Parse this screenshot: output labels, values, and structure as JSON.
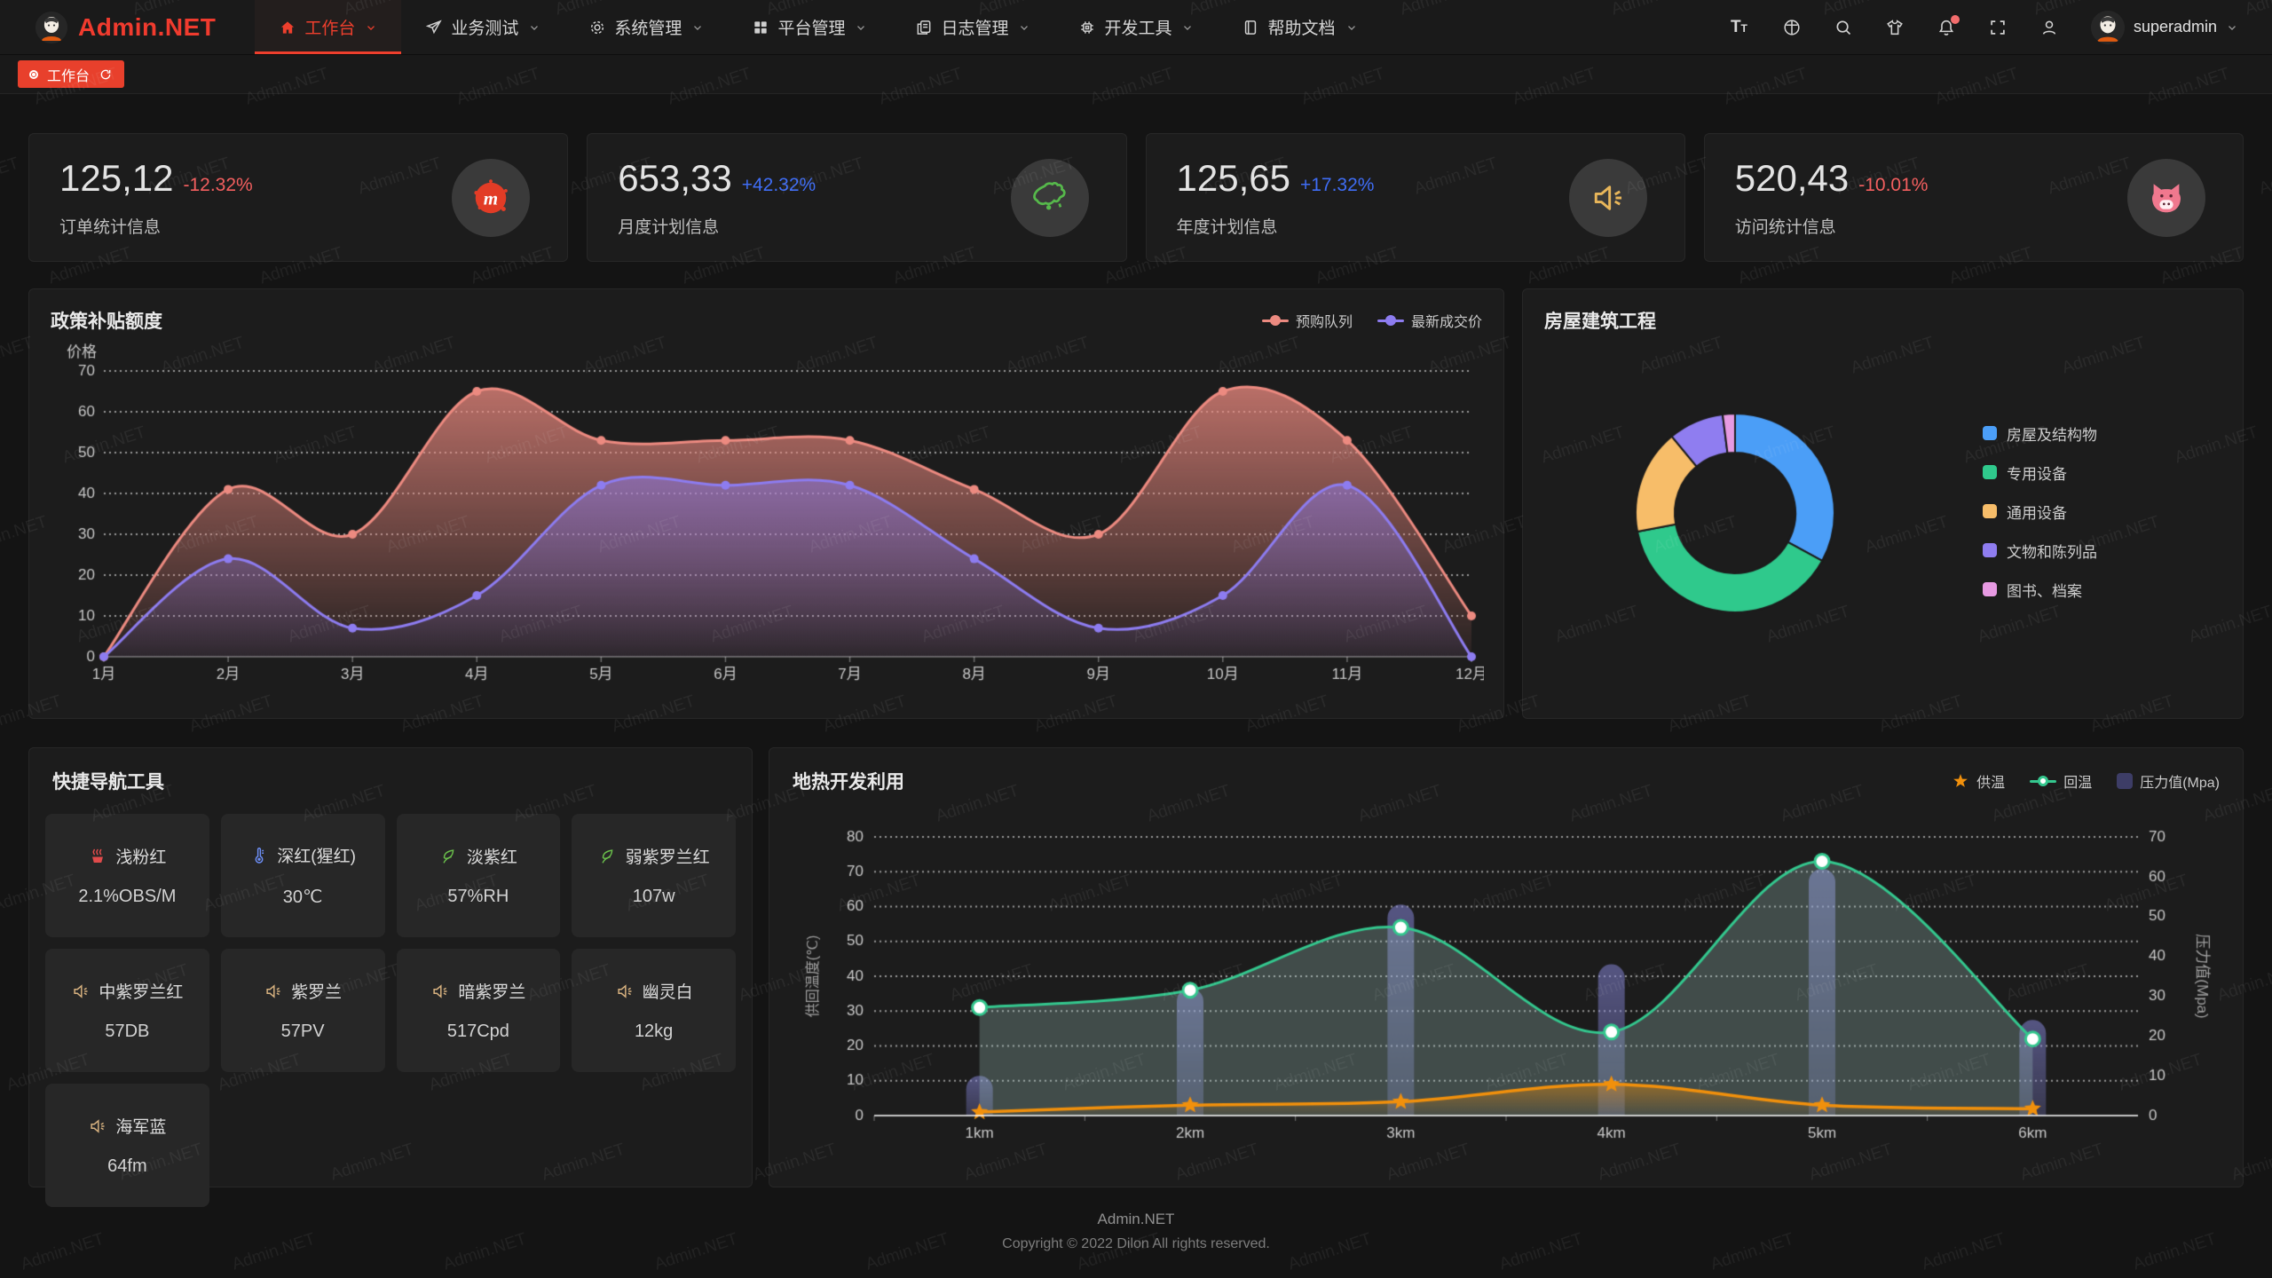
{
  "navbar": {
    "logo_text": "Admin.NET",
    "menu": [
      {
        "label": "工作台",
        "icon": "home-icon",
        "active": true
      },
      {
        "label": "业务测试",
        "icon": "send-icon",
        "active": false
      },
      {
        "label": "系统管理",
        "icon": "gear-icon",
        "active": false
      },
      {
        "label": "平台管理",
        "icon": "grid-icon",
        "active": false
      },
      {
        "label": "日志管理",
        "icon": "log-icon",
        "active": false
      },
      {
        "label": "开发工具",
        "icon": "cpu-icon",
        "active": false
      },
      {
        "label": "帮助文档",
        "icon": "book-icon",
        "active": false
      }
    ],
    "right_icons": [
      "font-size-icon",
      "language-icon",
      "search-icon",
      "theme-shirt-icon",
      "bell-icon",
      "fullscreen-icon",
      "profile-icon"
    ],
    "user_name": "superadmin"
  },
  "tabbar": {
    "active_tab": "工作台"
  },
  "stat_cards": [
    {
      "value": "125,12",
      "delta": "-12.32%",
      "trend": "down",
      "label": "订单统计信息",
      "icon": "meetup-icon"
    },
    {
      "value": "653,33",
      "delta": "+42.32%",
      "trend": "up",
      "label": "月度计划信息",
      "icon": "china-map-icon"
    },
    {
      "value": "125,65",
      "delta": "+17.32%",
      "trend": "up",
      "label": "年度计划信息",
      "icon": "speaker-icon"
    },
    {
      "value": "520,43",
      "delta": "-10.01%",
      "trend": "down",
      "label": "访问统计信息",
      "icon": "cat-icon"
    }
  ],
  "quick_nav": {
    "title": "快捷导航工具",
    "items": [
      {
        "label": "浅粉红",
        "value": "2.1%OBS/M",
        "icon": "heat-icon",
        "icon_color": "#e04b4b"
      },
      {
        "label": "深红(猩红)",
        "value": "30℃",
        "icon": "thermometer-icon",
        "icon_color": "#6c8ef5"
      },
      {
        "label": "淡紫红",
        "value": "57%RH",
        "icon": "leaf-icon",
        "icon_color": "#6abf4b"
      },
      {
        "label": "弱紫罗兰红",
        "value": "107w",
        "icon": "leaf-icon",
        "icon_color": "#6abf4b"
      },
      {
        "label": "中紫罗兰红",
        "value": "57DB",
        "icon": "speaker-icon",
        "icon_color": "#d9b380"
      },
      {
        "label": "紫罗兰",
        "value": "57PV",
        "icon": "speaker-icon",
        "icon_color": "#d9b380"
      },
      {
        "label": "暗紫罗兰",
        "value": "517Cpd",
        "icon": "speaker-icon",
        "icon_color": "#d9b380"
      },
      {
        "label": "幽灵白",
        "value": "12kg",
        "icon": "speaker-icon",
        "icon_color": "#d9b380"
      },
      {
        "label": "海军蓝",
        "value": "64fm",
        "icon": "speaker-icon",
        "icon_color": "#d9b380"
      }
    ]
  },
  "chart_data": [
    {
      "id": "subsidy",
      "type": "area",
      "title": "政策补贴额度",
      "ylabel": "价格",
      "ylim": [
        0,
        70
      ],
      "y_ticks": [
        0,
        10,
        20,
        30,
        40,
        50,
        60,
        70
      ],
      "grid": true,
      "legend_position": "top-right",
      "categories": [
        "1月",
        "2月",
        "3月",
        "4月",
        "5月",
        "6月",
        "7月",
        "8月",
        "9月",
        "10月",
        "11月",
        "12月"
      ],
      "series": [
        {
          "name": "预购队列",
          "color": "#ec8a80",
          "values": [
            0,
            41,
            30,
            65,
            53,
            53,
            53,
            41,
            30,
            65,
            53,
            10
          ]
        },
        {
          "name": "最新成交价",
          "color": "#8d7cf0",
          "values": [
            0,
            24,
            7,
            15,
            42,
            42,
            42,
            24,
            7,
            15,
            42,
            0
          ]
        }
      ]
    },
    {
      "id": "housing",
      "type": "pie",
      "title": "房屋建筑工程",
      "legend_position": "right",
      "slices": [
        {
          "name": "房屋及结构物",
          "value": 33,
          "color": "#4b9ef7"
        },
        {
          "name": "专用设备",
          "value": 39,
          "color": "#2fc98c"
        },
        {
          "name": "通用设备",
          "value": 17,
          "color": "#f7bd69"
        },
        {
          "name": "文物和陈列品",
          "value": 9,
          "color": "#8f7df0"
        },
        {
          "name": "图书、档案",
          "value": 2,
          "color": "#e79ae2"
        }
      ]
    },
    {
      "id": "geothermal",
      "type": "mixed",
      "title": "地热开发利用",
      "categories": [
        "1km",
        "2km",
        "3km",
        "4km",
        "5km",
        "6km"
      ],
      "left_axis": {
        "name": "供回温度(℃)",
        "min": 0,
        "max": 80,
        "step": 10
      },
      "right_axis": {
        "name": "压力值(Mpa)",
        "min": 0,
        "max": 70,
        "step": 10
      },
      "grid": true,
      "legend_position": "top-right",
      "series": [
        {
          "name": "供温",
          "type": "line",
          "marker": "star",
          "axis": "left",
          "color": "#f1900c",
          "values": [
            1,
            3,
            4,
            9,
            3,
            2
          ]
        },
        {
          "name": "回温",
          "type": "line",
          "marker": "circle",
          "axis": "left",
          "color": "#34c78e",
          "values": [
            31,
            36,
            54,
            24,
            73,
            22
          ]
        },
        {
          "name": "压力值(Mpa)",
          "type": "bar",
          "axis": "right",
          "color": "#8585d6",
          "legend_color": "#3d3d66",
          "values": [
            10,
            32,
            53,
            38,
            62,
            24
          ]
        }
      ]
    }
  ],
  "footer": {
    "line1": "Admin.NET",
    "line2": "Copyright © 2022 Dilon All rights reserved."
  },
  "watermark": {
    "text": "Admin.NET"
  }
}
